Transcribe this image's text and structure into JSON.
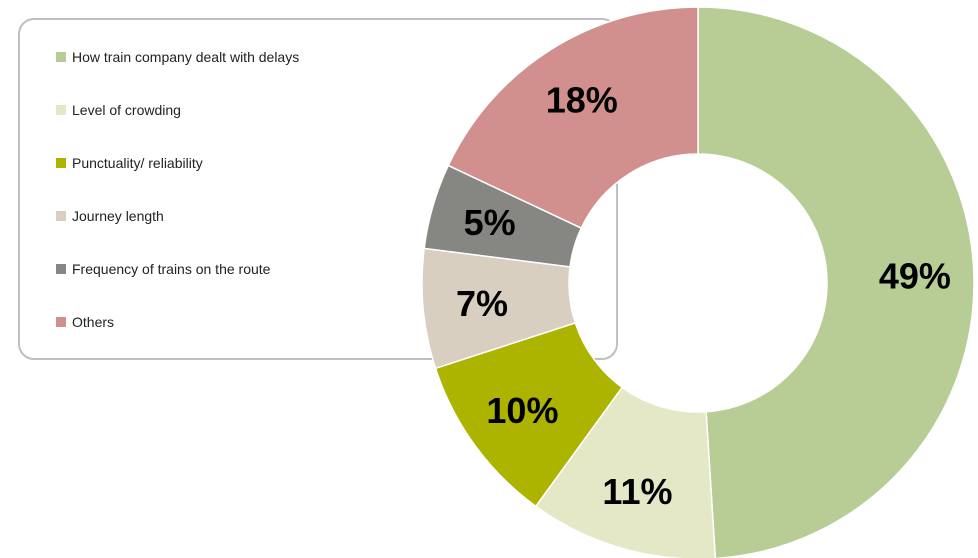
{
  "chart_data": {
    "type": "pie",
    "variant": "donut",
    "title": "",
    "categories": [
      "How train company dealt with delays",
      "Level of crowding",
      "Punctuality/ reliability",
      "Journey length",
      "Frequency of trains on the route",
      "Others"
    ],
    "values": [
      49,
      11,
      10,
      7,
      5,
      18
    ],
    "labels": [
      "49%",
      "11%",
      "10%",
      "7%",
      "5%",
      "18%"
    ],
    "colors": [
      "#b8cd96",
      "#e4e8c6",
      "#acb400",
      "#d8cfc1",
      "#868683",
      "#d18f8e"
    ],
    "legend_position": "top-left",
    "start_angle": "12 o'clock",
    "direction": "clockwise"
  }
}
